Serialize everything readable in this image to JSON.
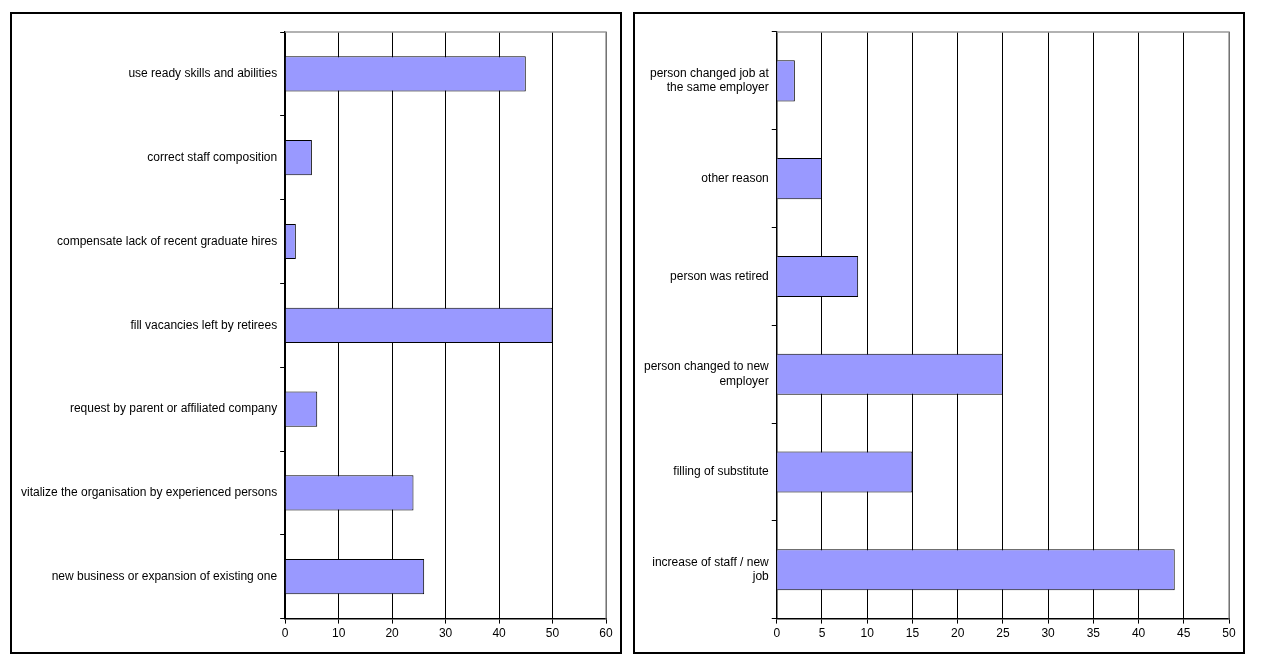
{
  "chart_data": [
    {
      "type": "bar",
      "orientation": "horizontal",
      "categories": [
        "use ready skills and abilities",
        "correct staff composition",
        "compensate lack of recent graduate hires",
        "fill vacancies left by retirees",
        "request by parent or affiliated company",
        "vitalize the organisation by experienced persons",
        "new business or expansion of existing one"
      ],
      "values": [
        45,
        5,
        2,
        50,
        6,
        24,
        26
      ],
      "color": "#9999ff",
      "xlim": [
        0,
        60
      ],
      "xticks": [
        0,
        10,
        20,
        30,
        40,
        50,
        60
      ],
      "grid": "x"
    },
    {
      "type": "bar",
      "orientation": "horizontal",
      "categories": [
        "person changed job at the same employer",
        "other reason",
        "person was retired",
        "person changed to new employer",
        "filling of substitute",
        "increase of staff / new job"
      ],
      "values": [
        2,
        5,
        9,
        25,
        15,
        44
      ],
      "color": "#9999ff",
      "xlim": [
        0,
        50
      ],
      "xticks": [
        0,
        5,
        10,
        15,
        20,
        25,
        30,
        35,
        40,
        45,
        50
      ],
      "grid": "x"
    }
  ]
}
